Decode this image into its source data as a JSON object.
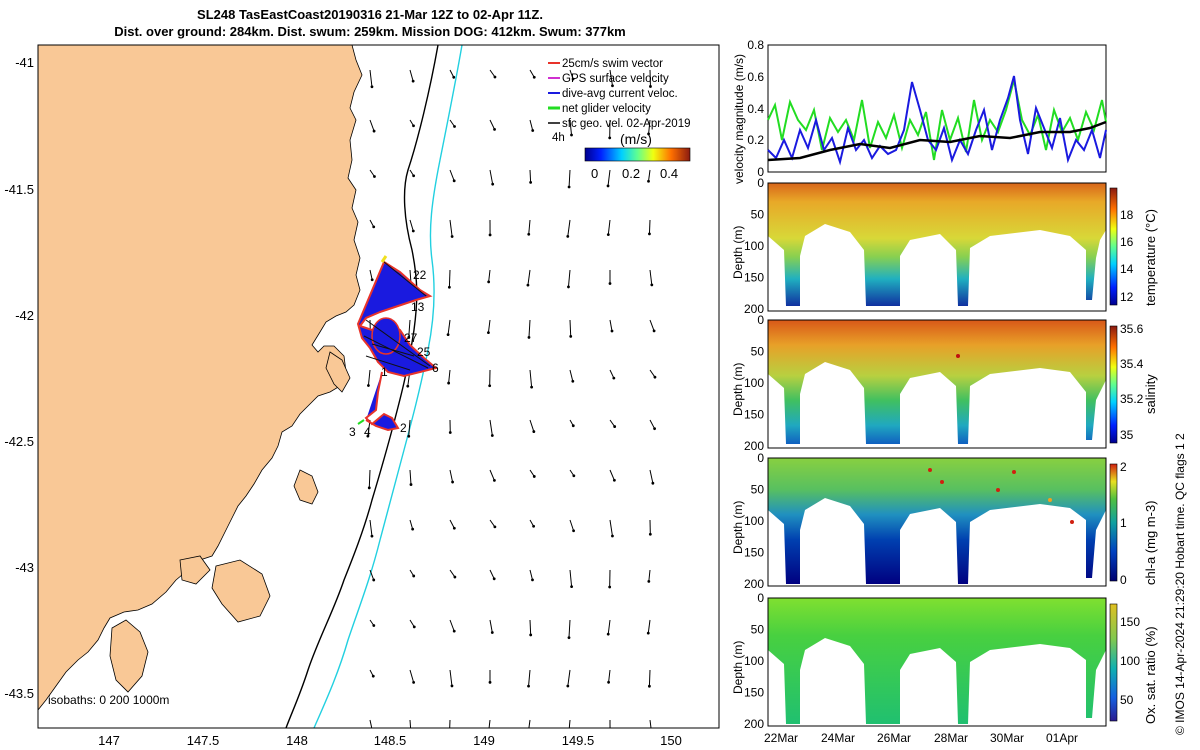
{
  "title": {
    "line1": "SL248 TasEastCoast20190316 21-Mar 12Z to 02-Apr 11Z.",
    "line2": "Dist. over ground: 284km. Dist. swum: 259km. Mission DOG: 412km. Swum: 377km"
  },
  "map": {
    "lon_ticks": [
      "147",
      "147.5",
      "148",
      "148.5",
      "149",
      "149.5",
      "150"
    ],
    "lat_ticks": [
      "-41",
      "-41.5",
      "-42",
      "-42.5",
      "-43",
      "-43.5"
    ],
    "isobath_label": "isobaths: 0   200 1000m",
    "legend": [
      {
        "label": "25cm/s swim vector",
        "color": "#e8332a"
      },
      {
        "label": "GPS surface velocity",
        "color": "#d030d0"
      },
      {
        "label": "dive-avg current veloc.",
        "color": "#1a1adf"
      },
      {
        "label": "net glider velocity",
        "color": "#22dd22"
      },
      {
        "label": "sfc geo. vel. 02-Apr-2019",
        "color": "#000000"
      }
    ],
    "colorbar_title": "(m/s)",
    "colorbar_ticks": [
      "0",
      "0.2",
      "0.4"
    ],
    "colorbar_extra_label": "4h",
    "track_labels": [
      "22",
      "13",
      "27",
      "25",
      "6",
      "1",
      "2",
      "3",
      "4"
    ],
    "colors": {
      "land": "#f9c896",
      "isobath_200": "#000000",
      "isobath_1000": "#22d0e0"
    }
  },
  "velocity_panel": {
    "ylabel": "velocity magnitude (m/s)",
    "y_ticks": [
      "0",
      "0.2",
      "0.4",
      "0.6",
      "0.8"
    ]
  },
  "sections": [
    {
      "name": "temperature",
      "label": "temperature (°C)",
      "ticks": [
        "12",
        "14",
        "16",
        "18"
      ]
    },
    {
      "name": "salinity",
      "label": "salinity",
      "ticks": [
        "35",
        "35.2",
        "35.4",
        "35.6"
      ]
    },
    {
      "name": "chla",
      "label": "chl-a (mg m-3)",
      "ticks": [
        "0",
        "1",
        "2"
      ]
    },
    {
      "name": "oxygen",
      "label": "Ox. sat. ratio (%)",
      "ticks": [
        "50",
        "100",
        "150"
      ]
    }
  ],
  "depth_axis": {
    "label": "Depth (m)",
    "ticks": [
      "0",
      "50",
      "100",
      "150",
      "200"
    ]
  },
  "date_ticks": [
    "22Mar",
    "24Mar",
    "26Mar",
    "28Mar",
    "30Mar",
    "01Apr"
  ],
  "credit": "© IMOS 14-Apr-2024 21:29:20 Hobart time. QC flags 1  2"
}
